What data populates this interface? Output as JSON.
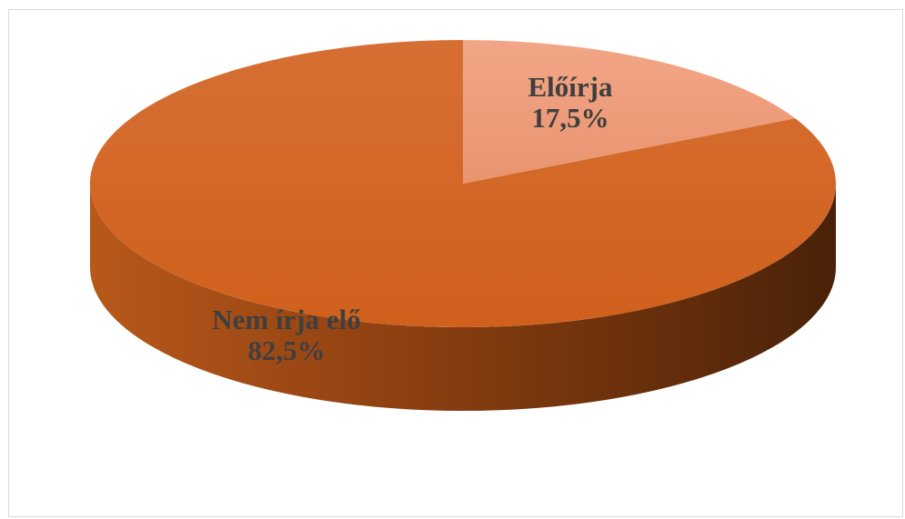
{
  "chart_data": {
    "type": "pie",
    "style": "3d",
    "categories": [
      "Előírja",
      "Nem írja elő"
    ],
    "values": [
      17.5,
      82.5
    ],
    "unit": "%",
    "data_labels": [
      {
        "name": "Előírja",
        "value": "17,5%"
      },
      {
        "name": "Nem írja elő",
        "value": "82,5%"
      }
    ],
    "colors": {
      "Előírja": "#f0a080",
      "Nem írja elő": "#d2601e",
      "side_dark": "#4a2208"
    },
    "legend": "none"
  }
}
